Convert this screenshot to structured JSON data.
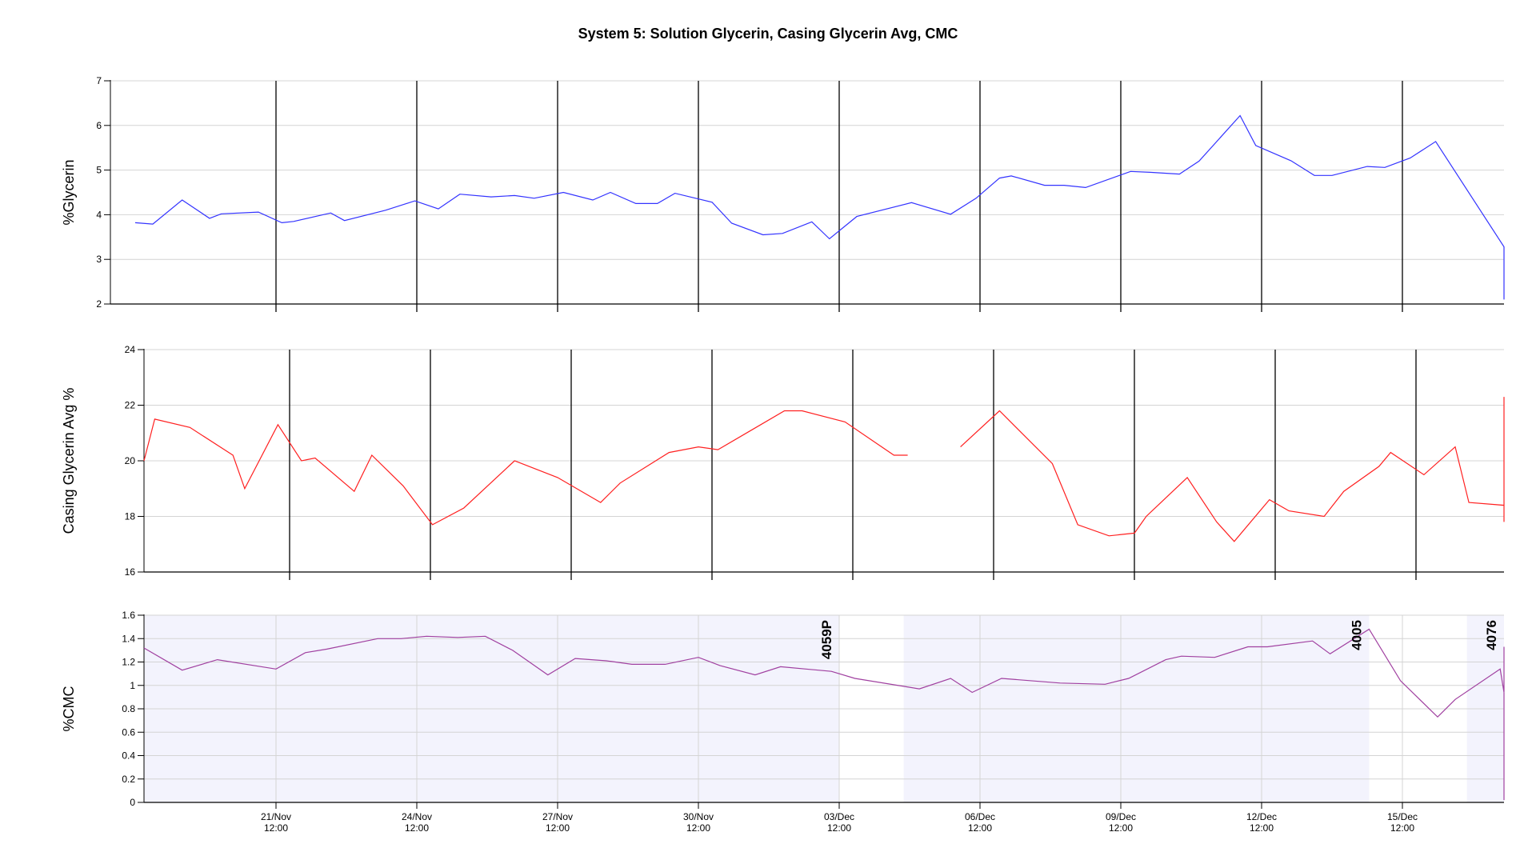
{
  "chart_data": {
    "title": "System 5: Solution Glycerin, Casing Glycerin Avg, CMC",
    "type": "line",
    "x_range": [
      "2024-11-18T12:00",
      "2024-12-18T00:00"
    ],
    "x_ticks": [
      {
        "date": "21/Nov",
        "time": "12:00",
        "at": "2024-11-21T12:00"
      },
      {
        "date": "24/Nov",
        "time": "12:00",
        "at": "2024-11-24T12:00"
      },
      {
        "date": "27/Nov",
        "time": "12:00",
        "at": "2024-11-27T12:00"
      },
      {
        "date": "30/Nov",
        "time": "12:00",
        "at": "2024-11-30T12:00"
      },
      {
        "date": "03/Dec",
        "time": "12:00",
        "at": "2024-12-03T12:00"
      },
      {
        "date": "06/Dec",
        "time": "12:00",
        "at": "2024-12-06T12:00"
      },
      {
        "date": "09/Dec",
        "time": "12:00",
        "at": "2024-12-09T12:00"
      },
      {
        "date": "12/Dec",
        "time": "12:00",
        "at": "2024-12-12T12:00"
      },
      {
        "date": "15/Dec",
        "time": "12:00",
        "at": "2024-12-15T12:00"
      }
    ],
    "panels": [
      {
        "ylabel": "%Glycerin",
        "ylim": [
          2,
          7
        ],
        "yticks": [
          "2",
          "3",
          "4",
          "5",
          "6",
          "7"
        ],
        "color": "#3333ff",
        "vlines_at": [
          "2024-11-21T12:00",
          "2024-11-24T12:00",
          "2024-11-27T12:00",
          "2024-11-30T12:00",
          "2024-12-03T12:00",
          "2024-12-06T12:00",
          "2024-12-09T12:00",
          "2024-12-12T12:00",
          "2024-12-15T12:00"
        ],
        "series": [
          {
            "t": "2024-11-18T12:00",
            "v": 3.82
          },
          {
            "t": "2024-11-18T21:00",
            "v": 3.79
          },
          {
            "t": "2024-11-19T12:00",
            "v": 4.33
          },
          {
            "t": "2024-11-20T02:00",
            "v": 3.92
          },
          {
            "t": "2024-11-20T08:00",
            "v": 4.02
          },
          {
            "t": "2024-11-21T03:00",
            "v": 4.06
          },
          {
            "t": "2024-11-21T15:00",
            "v": 3.82
          },
          {
            "t": "2024-11-21T21:00",
            "v": 3.85
          },
          {
            "t": "2024-11-22T16:00",
            "v": 4.04
          },
          {
            "t": "2024-11-22T23:00",
            "v": 3.87
          },
          {
            "t": "2024-11-23T20:00",
            "v": 4.1
          },
          {
            "t": "2024-11-24T11:00",
            "v": 4.31
          },
          {
            "t": "2024-11-24T23:00",
            "v": 4.13
          },
          {
            "t": "2024-11-25T10:00",
            "v": 4.46
          },
          {
            "t": "2024-11-26T02:00",
            "v": 4.4
          },
          {
            "t": "2024-11-26T14:00",
            "v": 4.43
          },
          {
            "t": "2024-11-27T00:00",
            "v": 4.37
          },
          {
            "t": "2024-11-27T15:00",
            "v": 4.5
          },
          {
            "t": "2024-11-28T06:00",
            "v": 4.33
          },
          {
            "t": "2024-11-28T15:00",
            "v": 4.5
          },
          {
            "t": "2024-11-29T04:00",
            "v": 4.25
          },
          {
            "t": "2024-11-29T15:00",
            "v": 4.25
          },
          {
            "t": "2024-11-30T00:00",
            "v": 4.48
          },
          {
            "t": "2024-11-30T19:00",
            "v": 4.28
          },
          {
            "t": "2024-12-01T05:00",
            "v": 3.81
          },
          {
            "t": "2024-12-01T21:00",
            "v": 3.55
          },
          {
            "t": "2024-12-02T07:00",
            "v": 3.58
          },
          {
            "t": "2024-12-02T22:00",
            "v": 3.84
          },
          {
            "t": "2024-12-03T07:00",
            "v": 3.46
          },
          {
            "t": "2024-12-03T21:00",
            "v": 3.96
          },
          {
            "t": "2024-12-05T01:00",
            "v": 4.27
          },
          {
            "t": "2024-12-05T21:00",
            "v": 4.01
          },
          {
            "t": "2024-12-06T10:00",
            "v": 4.37
          },
          {
            "t": "2024-12-06T22:00",
            "v": 4.82
          },
          {
            "t": "2024-12-07T04:00",
            "v": 4.87
          },
          {
            "t": "2024-12-07T21:00",
            "v": 4.66
          },
          {
            "t": "2024-12-08T07:00",
            "v": 4.66
          },
          {
            "t": "2024-12-08T18:00",
            "v": 4.61
          },
          {
            "t": "2024-12-09T17:00",
            "v": 4.97
          },
          {
            "t": "2024-12-10T03:00",
            "v": 4.95
          },
          {
            "t": "2024-12-10T18:00",
            "v": 4.91
          },
          {
            "t": "2024-12-11T04:00",
            "v": 5.2
          },
          {
            "t": "2024-12-12T01:00",
            "v": 6.22
          },
          {
            "t": "2024-12-12T09:00",
            "v": 5.55
          },
          {
            "t": "2024-12-13T03:00",
            "v": 5.21
          },
          {
            "t": "2024-12-13T15:00",
            "v": 4.88
          },
          {
            "t": "2024-12-14T00:00",
            "v": 4.88
          },
          {
            "t": "2024-12-14T18:00",
            "v": 5.08
          },
          {
            "t": "2024-12-15T03:00",
            "v": 5.06
          },
          {
            "t": "2024-12-15T16:00",
            "v": 5.27
          },
          {
            "t": "2024-12-16T05:00",
            "v": 5.64
          },
          {
            "t": "2024-12-17T21:00",
            "v": 3.28
          },
          {
            "t": "2024-12-18T04:00",
            "v": 2.23
          },
          {
            "t": "2024-12-18T22:00",
            "v": 2.1
          },
          {
            "t": "2024-12-19T04:00",
            "v": 2.28
          }
        ]
      },
      {
        "ylabel": "Casing Glycerin Avg %",
        "ylim": [
          16,
          24
        ],
        "yticks": [
          "16",
          "18",
          "20",
          "22",
          "24"
        ],
        "color": "#ff2020",
        "vlines_at": [
          "2024-11-21T12:00",
          "2024-11-24T12:00",
          "2024-11-27T12:00",
          "2024-11-30T12:00",
          "2024-12-03T12:00",
          "2024-12-06T12:00",
          "2024-12-09T12:00",
          "2024-12-12T12:00",
          "2024-12-15T12:00"
        ],
        "series": [
          {
            "t": "2024-11-18T12:00",
            "v": 20.0
          },
          {
            "t": "2024-11-18T22:00",
            "v": 21.5
          },
          {
            "t": "2024-11-19T16:00",
            "v": 21.2
          },
          {
            "t": "2024-11-20T14:00",
            "v": 20.2
          },
          {
            "t": "2024-11-20T20:00",
            "v": 19.0
          },
          {
            "t": "2024-11-21T13:00",
            "v": 21.3
          },
          {
            "t": "2024-11-22T01:00",
            "v": 20.0
          },
          {
            "t": "2024-11-22T08:00",
            "v": 20.1
          },
          {
            "t": "2024-11-23T04:00",
            "v": 18.9
          },
          {
            "t": "2024-11-23T13:00",
            "v": 20.2
          },
          {
            "t": "2024-11-24T05:00",
            "v": 19.1
          },
          {
            "t": "2024-11-24T20:00",
            "v": 17.7
          },
          {
            "t": "2024-11-25T12:00",
            "v": 18.3
          },
          {
            "t": "2024-11-26T14:00",
            "v": 20.0
          },
          {
            "t": "2024-11-27T12:00",
            "v": 19.4
          },
          {
            "t": "2024-11-28T10:00",
            "v": 18.5
          },
          {
            "t": "2024-11-28T20:00",
            "v": 19.2
          },
          {
            "t": "2024-11-29T21:00",
            "v": 20.3
          },
          {
            "t": "2024-11-30T12:00",
            "v": 20.5
          },
          {
            "t": "2024-11-30T22:00",
            "v": 20.4
          },
          {
            "t": "2024-12-01T15:00",
            "v": 21.1
          },
          {
            "t": "2024-12-02T08:00",
            "v": 21.8
          },
          {
            "t": "2024-12-02T17:00",
            "v": 21.8
          },
          {
            "t": "2024-12-03T15:00",
            "v": 21.4
          },
          {
            "t": "2024-12-04T16:00",
            "v": 20.2
          },
          {
            "t": "2024-12-04T23:00",
            "v": 20.2
          },
          {
            "t": "2024-12-06T02:00",
            "v": 20.5
          },
          {
            "t": "2024-12-06T22:00",
            "v": 21.8
          },
          {
            "t": "2024-12-08T01:00",
            "v": 19.9
          },
          {
            "t": "2024-12-08T14:00",
            "v": 17.7
          },
          {
            "t": "2024-12-09T06:00",
            "v": 17.3
          },
          {
            "t": "2024-12-09T19:00",
            "v": 17.4
          },
          {
            "t": "2024-12-10T01:00",
            "v": 18.0
          },
          {
            "t": "2024-12-10T22:00",
            "v": 19.4
          },
          {
            "t": "2024-12-11T13:00",
            "v": 17.8
          },
          {
            "t": "2024-12-11T22:00",
            "v": 17.1
          },
          {
            "t": "2024-12-12T16:00",
            "v": 18.6
          },
          {
            "t": "2024-12-13T02:00",
            "v": 18.2
          },
          {
            "t": "2024-12-13T20:00",
            "v": 18.0
          },
          {
            "t": "2024-12-14T06:00",
            "v": 18.9
          },
          {
            "t": "2024-12-15T00:00",
            "v": 19.8
          },
          {
            "t": "2024-12-15T06:00",
            "v": 20.3
          },
          {
            "t": "2024-12-15T23:00",
            "v": 19.5
          },
          {
            "t": "2024-12-16T15:00",
            "v": 20.5
          },
          {
            "t": "2024-12-16T22:00",
            "v": 18.5
          },
          {
            "t": "2024-12-17T22:00",
            "v": 18.4
          },
          {
            "t": "2024-12-18T23:00",
            "v": 18.1
          },
          {
            "t": "2024-12-19T15:00",
            "v": 19.2
          },
          {
            "t": "2024-12-20T22:00",
            "v": 20.4
          },
          {
            "t": "2024-12-22T02:00",
            "v": 22.3
          },
          {
            "t": "2024-12-22T09:00",
            "v": 17.8
          },
          {
            "t": "2024-12-23T06:00",
            "v": 20.3
          }
        ],
        "gap_after_index": 25
      },
      {
        "ylabel": "%CMC",
        "ylim": [
          0,
          1.6
        ],
        "yticks": [
          "0",
          "0.2",
          "0.4",
          "0.6",
          "0.8",
          "1",
          "1.2",
          "1.4",
          "1.6"
        ],
        "color": "#a040a0",
        "shaded_periods": [
          [
            "2024-11-18T12:00",
            "2024-12-03T12:00"
          ],
          [
            "2024-12-04T21:00",
            "2024-12-14T19:00"
          ],
          [
            "2024-12-16T21:00",
            "2024-12-18T00:00"
          ]
        ],
        "annotations": [
          {
            "text": "4059P",
            "at": "2024-12-03T12:00"
          },
          {
            "text": "4005",
            "at": "2024-12-14T19:00"
          },
          {
            "text": "4076",
            "at": "2024-12-18T00:00"
          }
        ],
        "series": [
          {
            "t": "2024-11-18T12:00",
            "v": 1.32
          },
          {
            "t": "2024-11-19T12:00",
            "v": 1.13
          },
          {
            "t": "2024-11-20T06:00",
            "v": 1.22
          },
          {
            "t": "2024-11-21T12:00",
            "v": 1.14
          },
          {
            "t": "2024-11-22T03:00",
            "v": 1.28
          },
          {
            "t": "2024-11-22T14:00",
            "v": 1.31
          },
          {
            "t": "2024-11-23T16:00",
            "v": 1.4
          },
          {
            "t": "2024-11-24T04:00",
            "v": 1.4
          },
          {
            "t": "2024-11-24T17:00",
            "v": 1.42
          },
          {
            "t": "2024-11-25T09:00",
            "v": 1.41
          },
          {
            "t": "2024-11-25T23:00",
            "v": 1.42
          },
          {
            "t": "2024-11-26T13:00",
            "v": 1.3
          },
          {
            "t": "2024-11-27T07:00",
            "v": 1.09
          },
          {
            "t": "2024-11-27T21:00",
            "v": 1.23
          },
          {
            "t": "2024-11-28T13:00",
            "v": 1.21
          },
          {
            "t": "2024-11-29T02:00",
            "v": 1.18
          },
          {
            "t": "2024-11-29T19:00",
            "v": 1.18
          },
          {
            "t": "2024-11-30T12:00",
            "v": 1.24
          },
          {
            "t": "2024-11-30T23:00",
            "v": 1.17
          },
          {
            "t": "2024-12-01T17:00",
            "v": 1.09
          },
          {
            "t": "2024-12-02T06:00",
            "v": 1.16
          },
          {
            "t": "2024-12-03T08:00",
            "v": 1.12
          },
          {
            "t": "2024-12-03T20:00",
            "v": 1.06
          },
          {
            "t": "2024-12-05T05:00",
            "v": 0.97
          },
          {
            "t": "2024-12-05T21:00",
            "v": 1.06
          },
          {
            "t": "2024-12-06T08:00",
            "v": 0.94
          },
          {
            "t": "2024-12-06T23:00",
            "v": 1.06
          },
          {
            "t": "2024-12-08T05:00",
            "v": 1.02
          },
          {
            "t": "2024-12-09T04:00",
            "v": 1.01
          },
          {
            "t": "2024-12-09T16:00",
            "v": 1.06
          },
          {
            "t": "2024-12-10T11:00",
            "v": 1.22
          },
          {
            "t": "2024-12-10T19:00",
            "v": 1.25
          },
          {
            "t": "2024-12-11T12:00",
            "v": 1.24
          },
          {
            "t": "2024-12-12T05:00",
            "v": 1.33
          },
          {
            "t": "2024-12-12T15:00",
            "v": 1.33
          },
          {
            "t": "2024-12-13T14:00",
            "v": 1.38
          },
          {
            "t": "2024-12-13T23:00",
            "v": 1.27
          },
          {
            "t": "2024-12-14T19:00",
            "v": 1.48
          },
          {
            "t": "2024-12-15T11:00",
            "v": 1.04
          },
          {
            "t": "2024-12-16T06:00",
            "v": 0.73
          },
          {
            "t": "2024-12-16T15:00",
            "v": 0.88
          },
          {
            "t": "2024-12-17T14:00",
            "v": 1.14
          },
          {
            "t": "2024-12-18T08:00",
            "v": 0.94
          },
          {
            "t": "2024-12-18T18:00",
            "v": 1.23
          },
          {
            "t": "2024-12-19T17:00",
            "v": 1.33
          },
          {
            "t": "2024-12-20T04:00",
            "v": 1.2
          },
          {
            "t": "2024-12-21T00:00",
            "v": 1.02
          },
          {
            "t": "2024-12-21T11:00",
            "v": 0.99
          },
          {
            "t": "2024-12-23T21:00",
            "v": 0.15
          },
          {
            "t": "2024-12-24T07:00",
            "v": 0.07
          },
          {
            "t": "2024-12-25T07:00",
            "v": 0.13
          },
          {
            "t": "2024-12-25T15:00",
            "v": 0.02
          }
        ]
      }
    ]
  }
}
